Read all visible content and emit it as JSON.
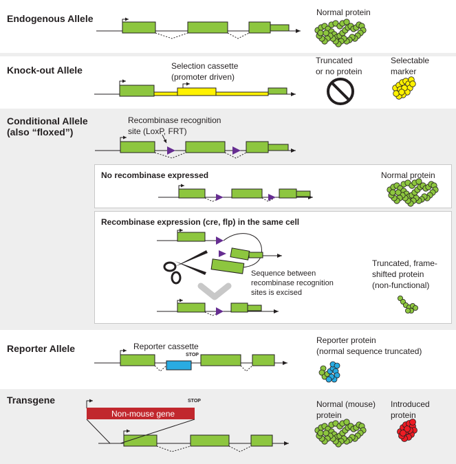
{
  "colors": {
    "exon": "#8dc63f",
    "exon_stroke": "#231f20",
    "cassette": "#fff200",
    "reporter": "#29abe2",
    "transgene_bar": "#c1272d",
    "lox_site": "#662d91",
    "band_grey": "#eeeeee",
    "protein_normal": "#8dc63f",
    "protein_marker": "#fff200",
    "protein_introduced": "#ed1c24"
  },
  "sections": {
    "endogenous": {
      "title": "Endogenous Allele",
      "protein_label": "Normal protein"
    },
    "knockout": {
      "title": "Knock-out Allele",
      "cassette_label_1": "Selection cassette",
      "cassette_label_2": "(promoter driven)",
      "protein_label_1": "Truncated",
      "protein_label_2": "or no protein",
      "marker_label_1": "Selectable",
      "marker_label_2": "marker",
      "no_protein_icon": "no-symbol"
    },
    "conditional": {
      "title_1": "Conditional Allele",
      "title_2": "(also “floxed”)",
      "site_label_1": "Recombinase recognition",
      "site_label_2": "site (LoxP, FRT)",
      "no_recombinase": {
        "title": "No recombinase expressed",
        "protein_label": "Normal protein"
      },
      "recombinase": {
        "title": "Recombinase expression (cre, flp) in the same cell",
        "excised_1": "Sequence between",
        "excised_2": "recombinase recognition",
        "excised_3": "sites is excised",
        "protein_1": "Truncated, frame-",
        "protein_2": "shifted protein",
        "protein_3": "(non-functional)",
        "tool_icon": "scissors"
      }
    },
    "reporter": {
      "title": "Reporter Allele",
      "cassette_label": "Reporter cassette",
      "stop_label": "STOP",
      "protein_label_1": "Reporter protein",
      "protein_label_2": "(normal sequence truncated)"
    },
    "transgene": {
      "title": "Transgene",
      "gene_label": "Non-mouse gene",
      "stop_label": "STOP",
      "normal_1": "Normal (mouse)",
      "normal_2": "protein",
      "introduced_1": "Introduced",
      "introduced_2": "protein"
    }
  }
}
